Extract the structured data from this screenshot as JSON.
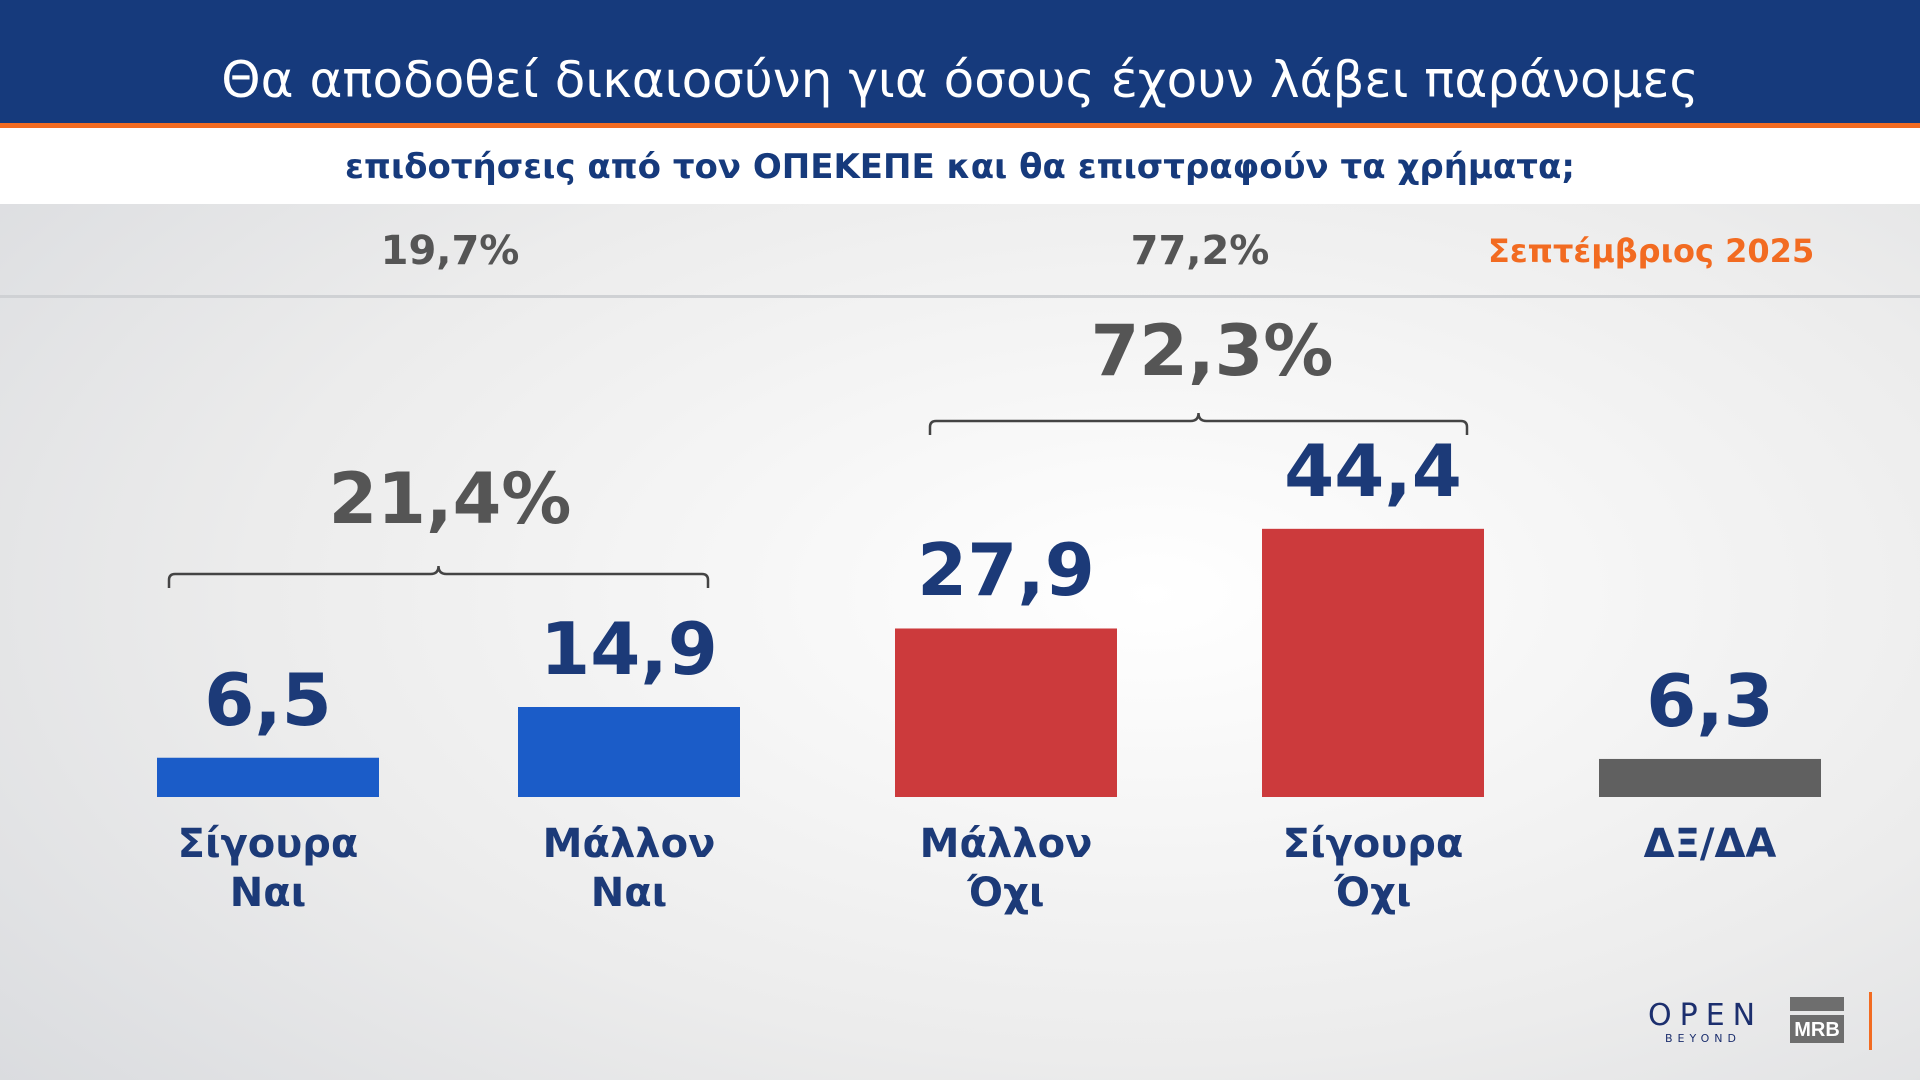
{
  "header": {
    "title": "Θα αποδοθεί δικαιοσύνη για όσους έχουν λάβει παράνομες",
    "subtitle": "επιδοτήσεις από τον ΟΠΕΚΕΠΕ και θα επιστραφούν τα χρήματα;"
  },
  "date": "Σεπτέμβριος 2025",
  "colors": {
    "header": "#163a7c",
    "accent": "#f26b21",
    "yes": "#1b5cc8",
    "no": "#cc3a3c",
    "dk": "#606060"
  },
  "chart_data": {
    "type": "bar",
    "categories": [
      "Σίγουρα Ναι",
      "Μάλλον Ναι",
      "Μάλλον Όχι",
      "Σίγουρα Όχι",
      "ΔΞ/ΔΑ"
    ],
    "category_lines": [
      [
        "Σίγουρα",
        "Ναι"
      ],
      [
        "Μάλλον",
        "Ναι"
      ],
      [
        "Μάλλον",
        "Όχι"
      ],
      [
        "Σίγουρα",
        "Όχι"
      ],
      [
        "ΔΞ/ΔΑ"
      ]
    ],
    "values": [
      6.5,
      14.9,
      27.9,
      44.4,
      6.3
    ],
    "value_labels": [
      "6,5",
      "14,9",
      "27,9",
      "44,4",
      "6,3"
    ],
    "bar_colors": [
      "#1b5cc8",
      "#1b5cc8",
      "#cc3a3c",
      "#cc3a3c",
      "#606060"
    ],
    "groups": [
      {
        "label": "21,4%",
        "value": 21.4,
        "members": [
          0,
          1
        ]
      },
      {
        "label": "72,3%",
        "value": 72.3,
        "members": [
          2,
          3
        ]
      }
    ],
    "previous": [
      {
        "label": "19,7%",
        "value": 19.7,
        "group": 0
      },
      {
        "label": "77,2%",
        "value": 77.2,
        "group": 1
      }
    ]
  },
  "logos": {
    "open": "OPEN",
    "open_sub": "BEYOND",
    "mrb": "MRB"
  }
}
